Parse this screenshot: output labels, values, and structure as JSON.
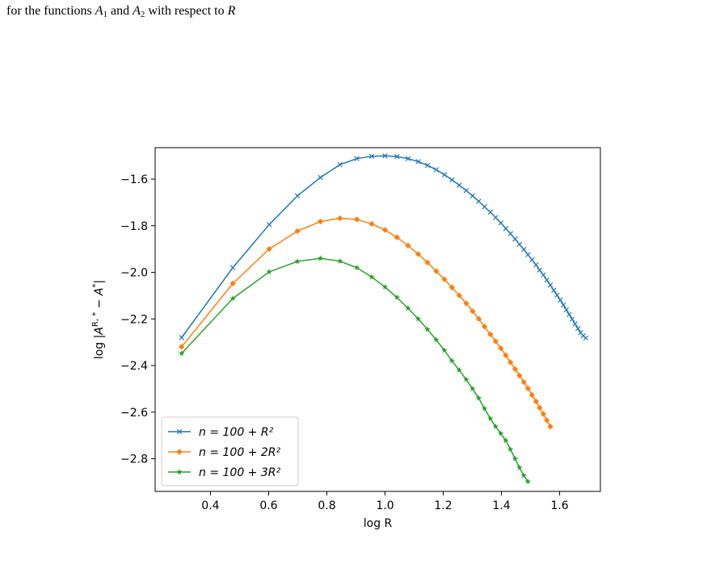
{
  "caption": {
    "before": "for the functions ",
    "var1": "A",
    "sub1": "1",
    "and": " and ",
    "var2": "A",
    "sub2": "2",
    "after": " with respect to ",
    "var3": "R"
  },
  "chart_data": {
    "type": "line",
    "title": "",
    "xlabel": "log R",
    "ylabel": "log |A^{R,*} − A^*|",
    "xlim": [
      0.21,
      1.74
    ],
    "ylim": [
      -2.94,
      -1.465
    ],
    "xticks": [
      0.4,
      0.6,
      0.8,
      1.0,
      1.2,
      1.4,
      1.6
    ],
    "xtick_labels": [
      "0.4",
      "0.6",
      "0.8",
      "1.0",
      "1.2",
      "1.4",
      "1.6"
    ],
    "yticks": [
      -1.6,
      -1.8,
      -2.0,
      -2.2,
      -2.4,
      -2.6,
      -2.8
    ],
    "ytick_labels": [
      "−1.6",
      "−1.8",
      "−2.0",
      "−2.2",
      "−2.4",
      "−2.6",
      "−2.8"
    ],
    "grid": false,
    "legend_position": "lower-left",
    "series": [
      {
        "name": "n = 100 + R²",
        "color": "#1f77b4",
        "marker": "x",
        "x": [
          0.301,
          0.477,
          0.602,
          0.699,
          0.778,
          0.845,
          0.903,
          0.954,
          1.0,
          1.041,
          1.079,
          1.114,
          1.146,
          1.176,
          1.204,
          1.23,
          1.255,
          1.279,
          1.301,
          1.322,
          1.342,
          1.362,
          1.38,
          1.398,
          1.415,
          1.431,
          1.447,
          1.462,
          1.477,
          1.491,
          1.505,
          1.519,
          1.531,
          1.544,
          1.556,
          1.568,
          1.58,
          1.591,
          1.602,
          1.613,
          1.623,
          1.633,
          1.643,
          1.653,
          1.663,
          1.672,
          1.681,
          1.69
        ],
        "y": [
          -2.28,
          -1.98,
          -1.795,
          -1.672,
          -1.593,
          -1.538,
          -1.512,
          -1.502,
          -1.5,
          -1.503,
          -1.512,
          -1.525,
          -1.541,
          -1.56,
          -1.581,
          -1.603,
          -1.626,
          -1.649,
          -1.672,
          -1.695,
          -1.719,
          -1.742,
          -1.765,
          -1.788,
          -1.812,
          -1.834,
          -1.857,
          -1.88,
          -1.902,
          -1.924,
          -1.946,
          -1.968,
          -1.99,
          -2.011,
          -2.033,
          -2.055,
          -2.077,
          -2.098,
          -2.119,
          -2.14,
          -2.161,
          -2.181,
          -2.201,
          -2.221,
          -2.241,
          -2.259,
          -2.272,
          -2.282
        ]
      },
      {
        "name": "n = 100 + 2R²",
        "color": "#ff7f0e",
        "marker": "diamond",
        "x": [
          0.301,
          0.477,
          0.602,
          0.699,
          0.778,
          0.845,
          0.903,
          0.954,
          1.0,
          1.041,
          1.079,
          1.114,
          1.146,
          1.176,
          1.204,
          1.23,
          1.255,
          1.279,
          1.301,
          1.322,
          1.342,
          1.362,
          1.38,
          1.398,
          1.415,
          1.431,
          1.447,
          1.462,
          1.477,
          1.491,
          1.505,
          1.519,
          1.531,
          1.544,
          1.556,
          1.568
        ],
        "y": [
          -2.32,
          -2.048,
          -1.9,
          -1.823,
          -1.782,
          -1.768,
          -1.773,
          -1.792,
          -1.818,
          -1.85,
          -1.885,
          -1.922,
          -1.958,
          -1.995,
          -2.03,
          -2.065,
          -2.099,
          -2.133,
          -2.167,
          -2.2,
          -2.233,
          -2.266,
          -2.296,
          -2.326,
          -2.356,
          -2.386,
          -2.415,
          -2.443,
          -2.471,
          -2.498,
          -2.526,
          -2.554,
          -2.581,
          -2.608,
          -2.635,
          -2.662
        ]
      },
      {
        "name": "n = 100 + 3R²",
        "color": "#2ca02c",
        "marker": "star",
        "x": [
          0.301,
          0.477,
          0.602,
          0.699,
          0.778,
          0.845,
          0.903,
          0.954,
          1.0,
          1.041,
          1.079,
          1.114,
          1.146,
          1.176,
          1.204,
          1.23,
          1.255,
          1.279,
          1.301,
          1.322,
          1.342,
          1.362,
          1.38,
          1.398,
          1.415,
          1.431,
          1.447,
          1.462,
          1.477,
          1.491
        ],
        "y": [
          -2.348,
          -2.112,
          -1.998,
          -1.953,
          -1.94,
          -1.952,
          -1.98,
          -2.02,
          -2.063,
          -2.108,
          -2.154,
          -2.2,
          -2.245,
          -2.29,
          -2.335,
          -2.38,
          -2.42,
          -2.46,
          -2.5,
          -2.54,
          -2.585,
          -2.628,
          -2.662,
          -2.692,
          -2.722,
          -2.76,
          -2.8,
          -2.838,
          -2.872,
          -2.898
        ]
      }
    ]
  }
}
